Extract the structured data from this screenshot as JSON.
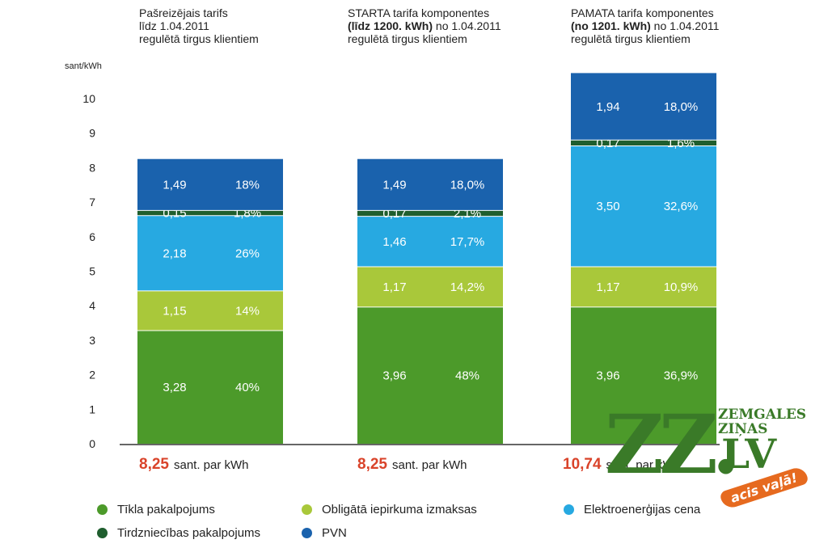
{
  "chart_data": {
    "type": "bar",
    "stacked": true,
    "ylabel": "sant/kWh",
    "ylim": [
      0,
      10.6
    ],
    "yticks": [
      0,
      1,
      2,
      3,
      4,
      5,
      6,
      7,
      8,
      9,
      10
    ],
    "grid": false,
    "legend_position": "bottom",
    "categories": [
      {
        "header": [
          "Pašreizējais tarifs",
          "līdz 1.04.2011",
          "regulētā tirgus klientiem"
        ],
        "header_bold_line": -1,
        "total": "8,25",
        "unit": "sant. par kWh"
      },
      {
        "header": [
          "STARTA tarifa komponentes",
          "(līdz 1200. kWh) no 1.04.2011",
          "regulētā tirgus klientiem"
        ],
        "header_bold": "(līdz 1200. kWh)",
        "total": "8,25",
        "unit": "sant. par kWh"
      },
      {
        "header": [
          "PAMATA tarifa komponentes",
          "(no 1201. kWh) no 1.04.2011",
          "regulētā tirgus klientiem"
        ],
        "header_bold": "(no 1201. kWh)",
        "total": "10,74",
        "unit": "sant. par kWh"
      }
    ],
    "series": [
      {
        "name": "Tīkla pakalpojums",
        "color": "#4c9a2a",
        "values": [
          3.28,
          3.96,
          3.96
        ],
        "labels": [
          "3,28",
          "3,96",
          "3,96"
        ],
        "percents": [
          "40%",
          "48%",
          "36,9%"
        ]
      },
      {
        "name": "Obligātā iepirkuma izmaksas",
        "color": "#a9c83a",
        "values": [
          1.15,
          1.17,
          1.17
        ],
        "labels": [
          "1,15",
          "1,17",
          "1,17"
        ],
        "percents": [
          "14%",
          "14,2%",
          "10,9%"
        ]
      },
      {
        "name": "Elektroenerģijas cena",
        "color": "#27a9e1",
        "values": [
          2.18,
          1.46,
          3.5
        ],
        "labels": [
          "2,18",
          "1,46",
          "3,50"
        ],
        "percents": [
          "26%",
          "17,7%",
          "32,6%"
        ]
      },
      {
        "name": "Tirdzniecības pakalpojums",
        "color": "#1f5e2e",
        "values": [
          0.15,
          0.17,
          0.17
        ],
        "labels": [
          "0,15",
          "0,17",
          "0,17"
        ],
        "percents": [
          "1,8%",
          "2,1%",
          "1,6%"
        ]
      },
      {
        "name": "PVN",
        "color": "#1a62ad",
        "values": [
          1.49,
          1.49,
          1.94
        ],
        "labels": [
          "1,49",
          "1,49",
          "1,94"
        ],
        "percents": [
          "18%",
          "18,0%",
          "18,0%"
        ]
      }
    ]
  },
  "logo": {
    "main": "ZZ.",
    "top": "ZEMGALES ZIŅAS",
    "lv": "LV",
    "slogan": "acis vaļā!"
  }
}
